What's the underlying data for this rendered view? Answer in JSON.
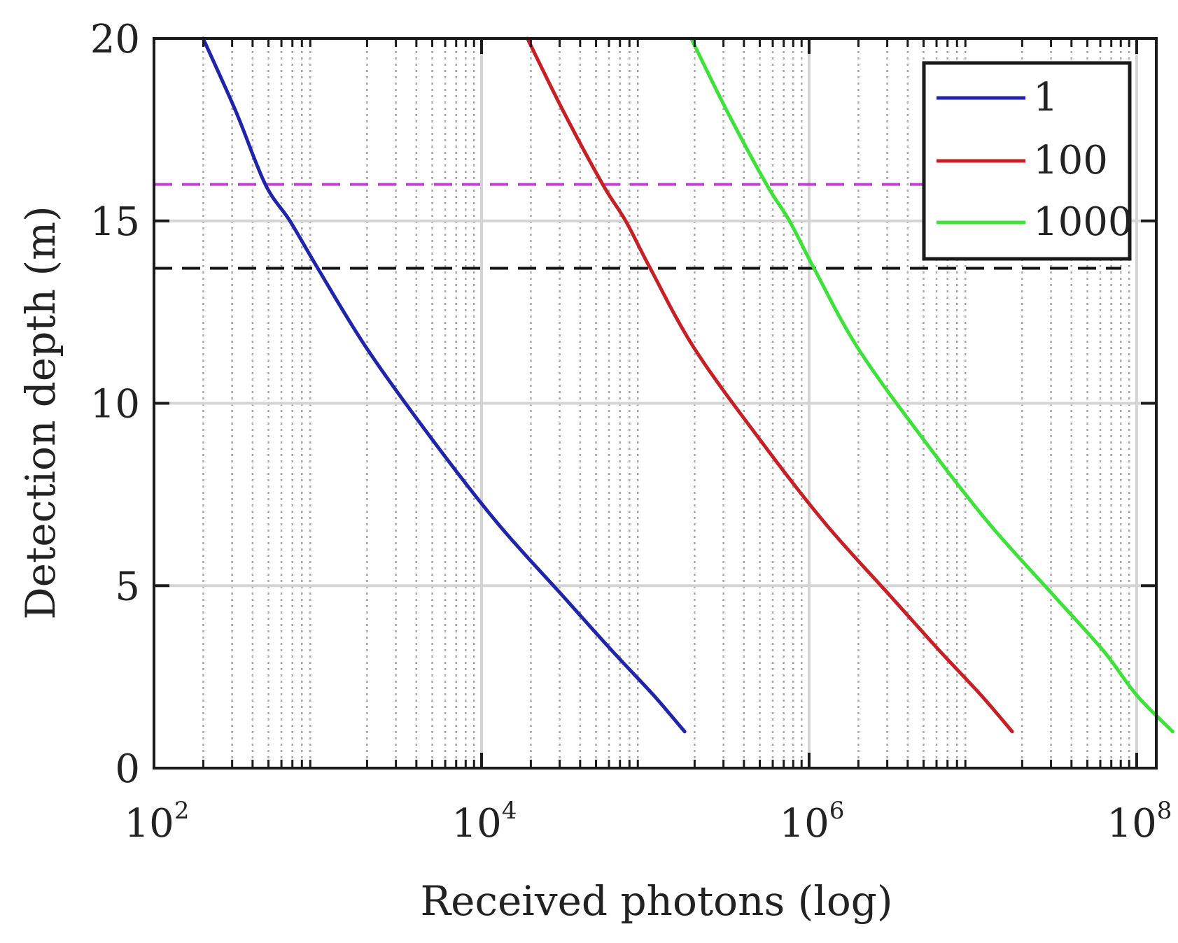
{
  "chart_data": {
    "type": "line",
    "title": "",
    "xlabel": "Received photons (log)",
    "ylabel": "Detection depth (m)",
    "xscale": "log",
    "xlim_log10": [
      2,
      8.12
    ],
    "ylim": [
      0,
      20
    ],
    "grid": true,
    "legend_position": "top-right",
    "x_ticks": [
      {
        "base": "10",
        "exp": "2",
        "log10": 2
      },
      {
        "base": "10",
        "exp": "4",
        "log10": 4
      },
      {
        "base": "10",
        "exp": "6",
        "log10": 6
      },
      {
        "base": "10",
        "exp": "8",
        "log10": 8
      }
    ],
    "y_ticks": [
      "0",
      "5",
      "10",
      "15",
      "20"
    ],
    "y_tick_values": [
      0,
      5,
      10,
      15,
      20
    ],
    "series": [
      {
        "name": "1",
        "color": "#1f24a8",
        "points": [
          [
            2.3,
            20
          ],
          [
            2.5,
            18
          ],
          [
            2.68,
            16
          ],
          [
            2.83,
            15
          ],
          [
            3.0,
            13.7
          ],
          [
            3.3,
            11.5
          ],
          [
            3.7,
            9
          ],
          [
            4.1,
            6.7
          ],
          [
            4.5,
            4.7
          ],
          [
            4.8,
            3.2
          ],
          [
            5.05,
            2.0
          ],
          [
            5.24,
            1.0
          ]
        ]
      },
      {
        "name": "100",
        "color": "#c42026",
        "points": [
          [
            4.28,
            20
          ],
          [
            4.5,
            18
          ],
          [
            4.74,
            16
          ],
          [
            4.88,
            15
          ],
          [
            5.03,
            13.7
          ],
          [
            5.3,
            11.5
          ],
          [
            5.7,
            9
          ],
          [
            6.1,
            6.7
          ],
          [
            6.5,
            4.7
          ],
          [
            6.8,
            3.2
          ],
          [
            7.05,
            2.0
          ],
          [
            7.24,
            1.0
          ]
        ]
      },
      {
        "name": "1000",
        "color": "#3ee03a",
        "points": [
          [
            5.28,
            20
          ],
          [
            5.5,
            18
          ],
          [
            5.74,
            16
          ],
          [
            5.88,
            15
          ],
          [
            6.03,
            13.7
          ],
          [
            6.3,
            11.5
          ],
          [
            6.7,
            9
          ],
          [
            7.1,
            6.7
          ],
          [
            7.5,
            4.7
          ],
          [
            7.8,
            3.2
          ],
          [
            8.0,
            2.0
          ],
          [
            8.22,
            1.0
          ]
        ]
      }
    ],
    "reference_lines": [
      {
        "name": "magenta-dashed",
        "y": 16,
        "color": "#c040d0"
      },
      {
        "name": "black-dashed",
        "y": 13.7,
        "color": "#111111"
      }
    ]
  }
}
